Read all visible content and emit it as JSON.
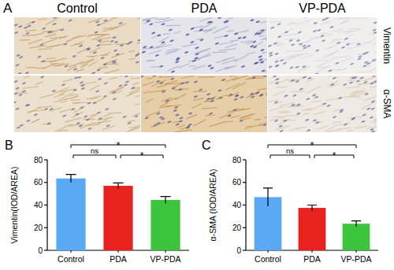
{
  "panel_a": {
    "label": "A",
    "columns": [
      "Control",
      "PDA",
      "VP-PDA"
    ],
    "rows": [
      "Vimentin",
      "α-SMA"
    ]
  },
  "chart_data": [
    {
      "type": "bar",
      "panel_label": "B",
      "y_label": "Vimentin(IOD/AREA)",
      "categories": [
        "Control",
        "PDA",
        "VP-PDA"
      ],
      "values": [
        63.5,
        57,
        44.5
      ],
      "errors": [
        3.5,
        2.5,
        3
      ],
      "colors": [
        "#5aa9f5",
        "#e8231f",
        "#3dc43d"
      ],
      "ylim": [
        0,
        80
      ],
      "yticks": [
        0,
        20,
        40,
        60,
        80
      ],
      "comparisons": [
        {
          "from": "Control",
          "to": "PDA",
          "label": "ns"
        },
        {
          "from": "PDA",
          "to": "VP-PDA",
          "label": "*"
        },
        {
          "from": "Control",
          "to": "VP-PDA",
          "label": "*"
        }
      ]
    },
    {
      "type": "bar",
      "panel_label": "C",
      "y_label": "α-SMA (IOD/AREA)",
      "categories": [
        "Control",
        "PDA",
        "VP-PDA"
      ],
      "values": [
        47,
        37.5,
        23.5
      ],
      "errors": [
        8,
        2.5,
        2.5
      ],
      "colors": [
        "#5aa9f5",
        "#e8231f",
        "#3dc43d"
      ],
      "ylim": [
        0,
        80
      ],
      "yticks": [
        0,
        20,
        40,
        60,
        80
      ],
      "comparisons": [
        {
          "from": "Control",
          "to": "PDA",
          "label": "ns"
        },
        {
          "from": "PDA",
          "to": "VP-PDA",
          "label": "*"
        },
        {
          "from": "Control",
          "to": "VP-PDA",
          "label": "*"
        }
      ]
    }
  ]
}
